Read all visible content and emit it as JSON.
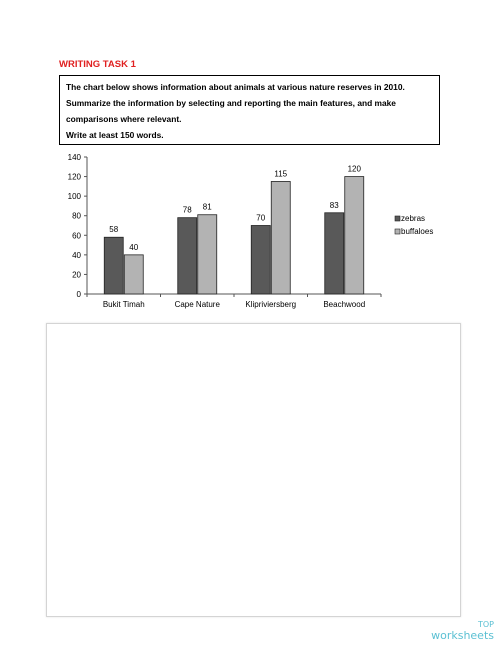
{
  "heading": "WRITING TASK 1",
  "prompt": {
    "line1": "The chart below shows information about animals at various nature reserves in 2010.",
    "line2": "Summarize the information by selecting and reporting the main features, and make",
    "line3": "comparisons where relevant.",
    "line4": "Write at least 150 words."
  },
  "chart_data": {
    "type": "bar",
    "categories": [
      "Bukit Timah",
      "Cape Nature",
      "Klipriviersberg",
      "Beachwood"
    ],
    "series": [
      {
        "name": "zebras",
        "values": [
          58,
          78,
          70,
          83
        ],
        "color": "#595959"
      },
      {
        "name": "buffaloes",
        "values": [
          40,
          81,
          115,
          120
        ],
        "color": "#b3b3b3"
      }
    ],
    "ylim": [
      0,
      140
    ],
    "yticks": [
      "0",
      "20",
      "40",
      "60",
      "80",
      "100",
      "120",
      "140"
    ],
    "legend_position": "right",
    "data_labels": true
  },
  "brand": {
    "top": "TOP",
    "bottom": "worksheets",
    "color": "#5bc0d3"
  }
}
